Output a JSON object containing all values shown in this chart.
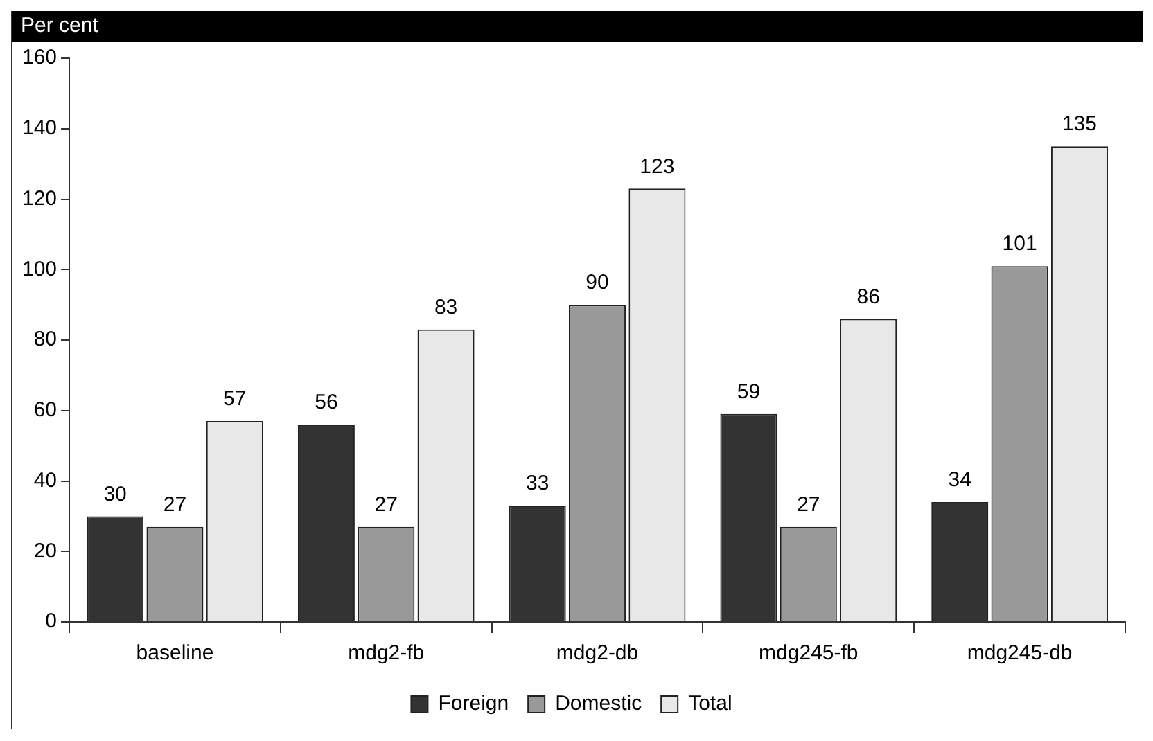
{
  "chart_data": {
    "type": "bar",
    "ylabel": "Per cent",
    "categories": [
      "baseline",
      "mdg2-fb",
      "mdg2-db",
      "mdg245-fb",
      "mdg245-db"
    ],
    "series": [
      {
        "name": "Foreign",
        "color": "#333333",
        "values": [
          30,
          56,
          33,
          59,
          34
        ]
      },
      {
        "name": "Domestic",
        "color": "#999999",
        "values": [
          27,
          27,
          90,
          27,
          101
        ]
      },
      {
        "name": "Total",
        "color": "#e8e8e8",
        "values": [
          57,
          83,
          123,
          86,
          135
        ]
      }
    ],
    "ylim": [
      0,
      160
    ],
    "yticks": [
      0,
      20,
      40,
      60,
      80,
      100,
      120,
      140,
      160
    ],
    "grid": false,
    "legend": "bottom",
    "data_labels": true
  }
}
